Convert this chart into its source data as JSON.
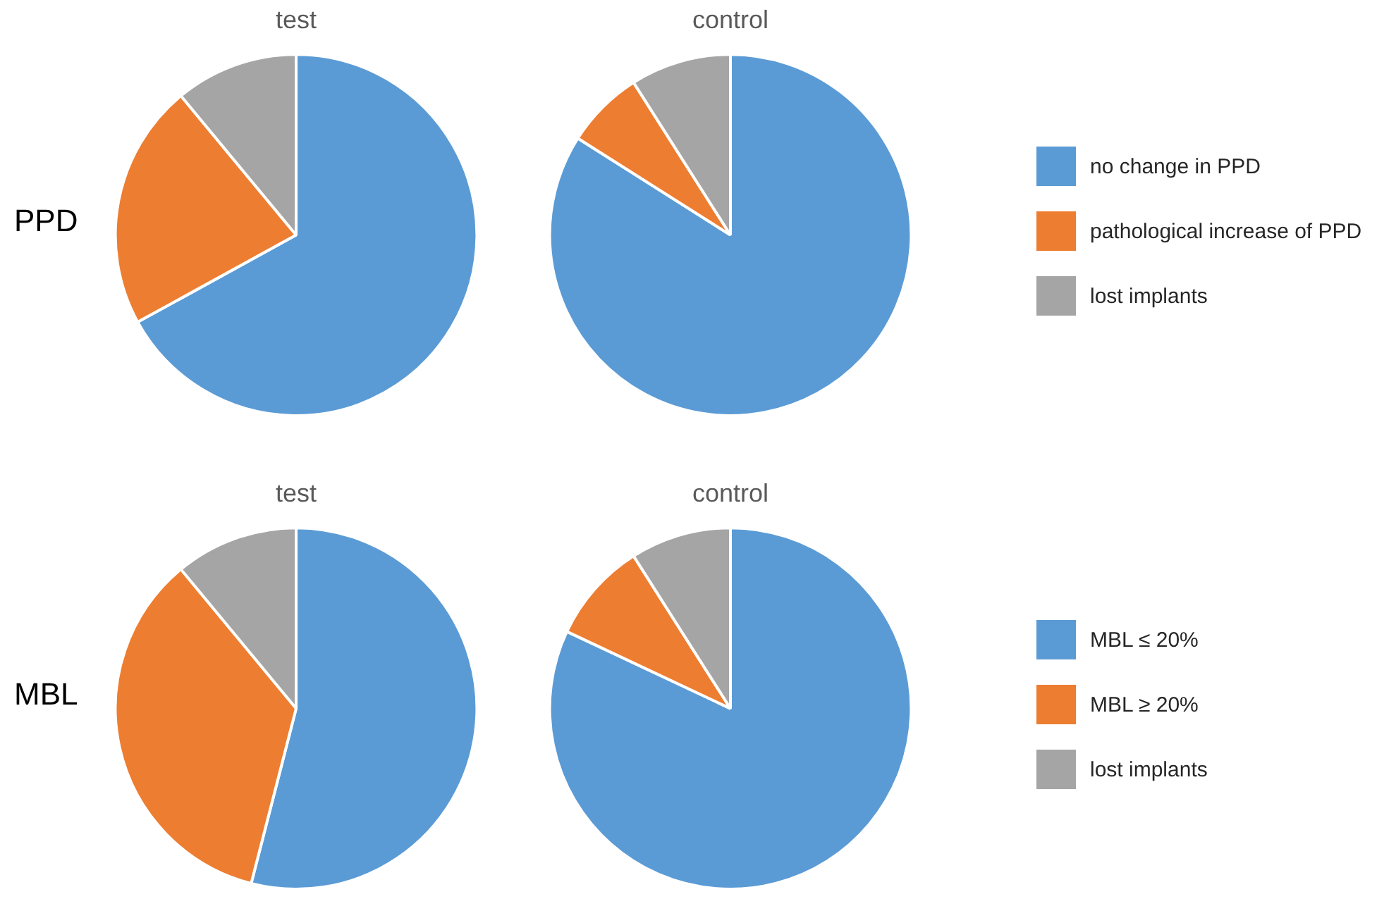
{
  "chart_data": [
    {
      "type": "pie",
      "title": "test",
      "ylabel": "PPD",
      "categories": [
        null,
        null,
        null
      ],
      "values": [
        67,
        22,
        11
      ],
      "colors": [
        "#5b9bd5",
        "#ed7d31",
        "#a5a5a5"
      ],
      "legend": false
    },
    {
      "type": "pie",
      "title": "control",
      "categories": [
        "no change in PPD",
        "pathological increase of PPD",
        "lost implants"
      ],
      "values": [
        84,
        7,
        9
      ],
      "colors": [
        "#5b9bd5",
        "#ed7d31",
        "#a5a5a5"
      ],
      "legend": "right"
    },
    {
      "type": "pie",
      "title": "test",
      "ylabel": "MBL",
      "categories": [
        null,
        null,
        null
      ],
      "values": [
        54,
        35,
        11
      ],
      "colors": [
        "#5b9bd5",
        "#ed7d31",
        "#a5a5a5"
      ],
      "legend": false
    },
    {
      "type": "pie",
      "title": "control",
      "categories": [
        "MBL ≤ 20%",
        "MBL ≥ 20%",
        "lost implants"
      ],
      "values": [
        82,
        9,
        9
      ],
      "colors": [
        "#5b9bd5",
        "#ed7d31",
        "#a5a5a5"
      ],
      "legend": "right"
    }
  ]
}
